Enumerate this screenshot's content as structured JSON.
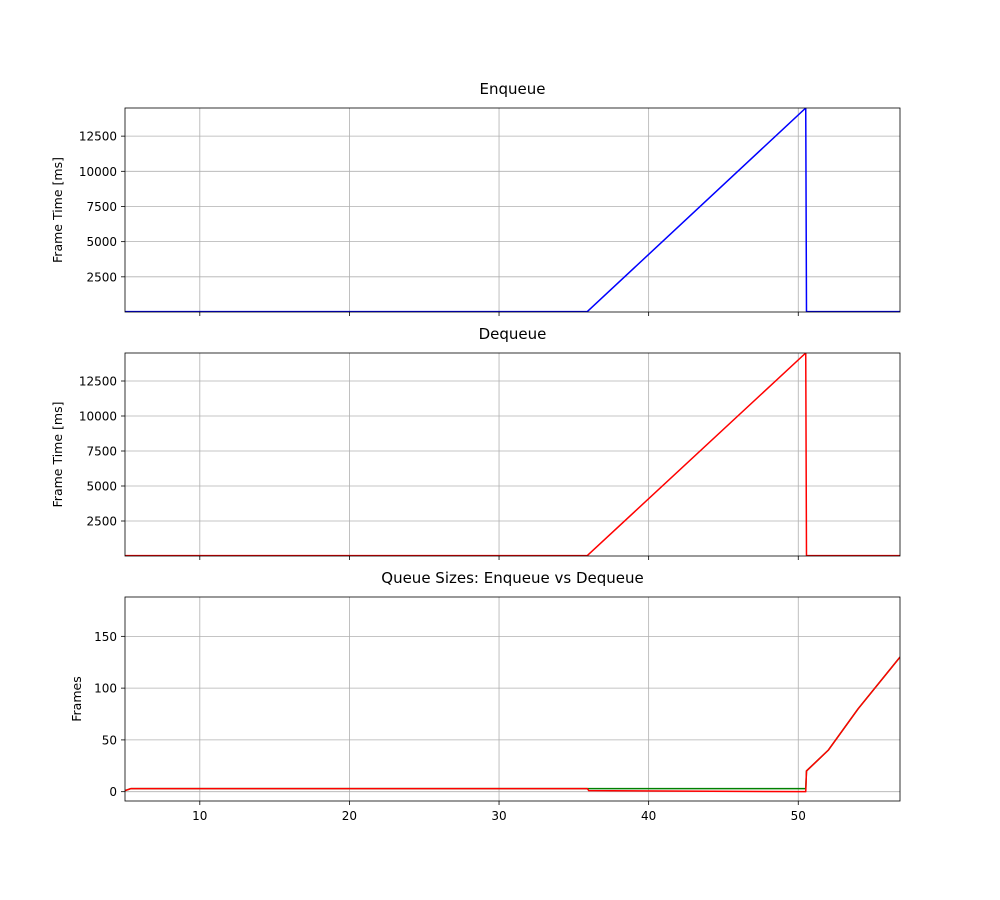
{
  "chart_data": [
    {
      "type": "line",
      "title": "Enqueue",
      "xlabel": "",
      "ylabel": "Frame Time [ms]",
      "xlim": [
        5,
        56.8
      ],
      "ylim": [
        0,
        14500
      ],
      "xticks": [
        10,
        20,
        30,
        40,
        50
      ],
      "yticks": [
        2500,
        5000,
        7500,
        10000,
        12500
      ],
      "grid": true,
      "show_xtick_labels": false,
      "series": [
        {
          "color": "#0000ff",
          "x": [
            5.0,
            35.9,
            50.5,
            50.55,
            56.8
          ],
          "y": [
            30,
            30,
            14500,
            30,
            30
          ]
        }
      ]
    },
    {
      "type": "line",
      "title": "Dequeue",
      "xlabel": "",
      "ylabel": "Frame Time [ms]",
      "xlim": [
        5,
        56.8
      ],
      "ylim": [
        0,
        14500
      ],
      "xticks": [
        10,
        20,
        30,
        40,
        50
      ],
      "yticks": [
        2500,
        5000,
        7500,
        10000,
        12500
      ],
      "grid": true,
      "show_xtick_labels": false,
      "series": [
        {
          "color": "#ff0000",
          "x": [
            5.0,
            35.9,
            50.5,
            50.55,
            56.8
          ],
          "y": [
            30,
            30,
            14500,
            30,
            30
          ]
        }
      ]
    },
    {
      "type": "line",
      "title": "Queue Sizes: Enqueue vs Dequeue",
      "xlabel": "",
      "ylabel": "Frames",
      "xlim": [
        5,
        56.8
      ],
      "ylim": [
        -9,
        188
      ],
      "xticks": [
        10,
        20,
        30,
        40,
        50
      ],
      "yticks": [
        0,
        50,
        100,
        150
      ],
      "grid": true,
      "show_xtick_labels": true,
      "series": [
        {
          "color": "#008000",
          "x": [
            5.0,
            5.4,
            35.9,
            50.5,
            50.55,
            52,
            54,
            56.8
          ],
          "y": [
            1,
            3,
            3,
            3,
            20,
            40,
            80,
            130
          ]
        },
        {
          "color": "#ff0000",
          "x": [
            5.0,
            5.4,
            35.9,
            36.0,
            50.5,
            50.55,
            52,
            54,
            56.8
          ],
          "y": [
            1,
            3,
            3,
            1,
            0,
            20,
            40,
            80,
            130
          ]
        }
      ]
    }
  ]
}
